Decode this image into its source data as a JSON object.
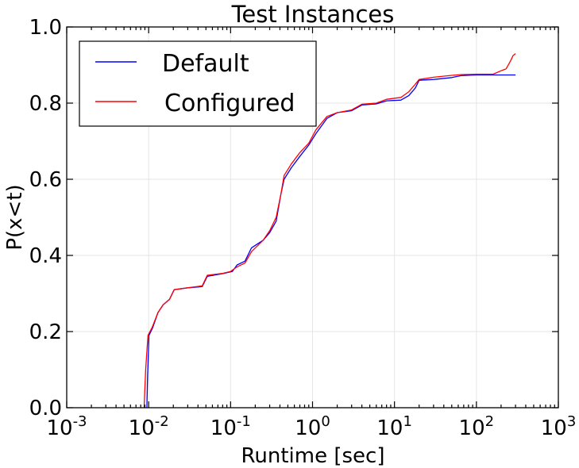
{
  "chart_data": {
    "type": "line",
    "title": "Test Instances",
    "xlabel": "Runtime [sec]",
    "ylabel": "P(x<t)",
    "x_scale": "log",
    "xlim": [
      0.001,
      1000
    ],
    "ylim": [
      0.0,
      1.0
    ],
    "grid": true,
    "legend_position": "top-left",
    "x_ticks": [
      {
        "base": "10",
        "exp": "-3",
        "value": 0.001
      },
      {
        "base": "10",
        "exp": "-2",
        "value": 0.01
      },
      {
        "base": "10",
        "exp": "-1",
        "value": 0.1
      },
      {
        "base": "10",
        "exp": "0",
        "value": 1
      },
      {
        "base": "10",
        "exp": "1",
        "value": 10
      },
      {
        "base": "10",
        "exp": "2",
        "value": 100
      },
      {
        "base": "10",
        "exp": "3",
        "value": 1000
      }
    ],
    "y_ticks": [
      "0.0",
      "0.2",
      "0.4",
      "0.6",
      "0.8",
      "1.0"
    ],
    "series": [
      {
        "name": "Default",
        "color": "#0000ff",
        "points": [
          [
            0.0095,
            0.0
          ],
          [
            0.0097,
            0.08
          ],
          [
            0.0101,
            0.19
          ],
          [
            0.0112,
            0.21
          ],
          [
            0.013,
            0.25
          ],
          [
            0.015,
            0.27
          ],
          [
            0.018,
            0.285
          ],
          [
            0.0205,
            0.31
          ],
          [
            0.03,
            0.315
          ],
          [
            0.045,
            0.318
          ],
          [
            0.052,
            0.345
          ],
          [
            0.08,
            0.352
          ],
          [
            0.105,
            0.358
          ],
          [
            0.12,
            0.375
          ],
          [
            0.15,
            0.385
          ],
          [
            0.18,
            0.42
          ],
          [
            0.25,
            0.44
          ],
          [
            0.3,
            0.46
          ],
          [
            0.36,
            0.49
          ],
          [
            0.41,
            0.56
          ],
          [
            0.45,
            0.6
          ],
          [
            0.55,
            0.63
          ],
          [
            0.7,
            0.66
          ],
          [
            0.9,
            0.69
          ],
          [
            1.1,
            0.72
          ],
          [
            1.5,
            0.76
          ],
          [
            2.0,
            0.775
          ],
          [
            3.0,
            0.78
          ],
          [
            4.0,
            0.795
          ],
          [
            6.0,
            0.798
          ],
          [
            8.0,
            0.806
          ],
          [
            12.0,
            0.808
          ],
          [
            15.0,
            0.82
          ],
          [
            18.0,
            0.84
          ],
          [
            20.0,
            0.86
          ],
          [
            30.0,
            0.862
          ],
          [
            50.0,
            0.867
          ],
          [
            65.0,
            0.872
          ],
          [
            100.0,
            0.874
          ],
          [
            300.0,
            0.874
          ]
        ]
      },
      {
        "name": "Configured",
        "color": "#ff0000",
        "points": [
          [
            0.0088,
            0.0
          ],
          [
            0.0092,
            0.1
          ],
          [
            0.0098,
            0.19
          ],
          [
            0.011,
            0.21
          ],
          [
            0.013,
            0.25
          ],
          [
            0.015,
            0.27
          ],
          [
            0.018,
            0.285
          ],
          [
            0.0205,
            0.31
          ],
          [
            0.03,
            0.315
          ],
          [
            0.045,
            0.32
          ],
          [
            0.052,
            0.348
          ],
          [
            0.08,
            0.353
          ],
          [
            0.1,
            0.358
          ],
          [
            0.12,
            0.37
          ],
          [
            0.15,
            0.38
          ],
          [
            0.18,
            0.41
          ],
          [
            0.25,
            0.44
          ],
          [
            0.3,
            0.465
          ],
          [
            0.36,
            0.5
          ],
          [
            0.41,
            0.56
          ],
          [
            0.45,
            0.61
          ],
          [
            0.55,
            0.64
          ],
          [
            0.7,
            0.67
          ],
          [
            0.9,
            0.695
          ],
          [
            1.1,
            0.73
          ],
          [
            1.5,
            0.765
          ],
          [
            2.0,
            0.775
          ],
          [
            3.0,
            0.782
          ],
          [
            4.0,
            0.797
          ],
          [
            6.0,
            0.8
          ],
          [
            8.0,
            0.81
          ],
          [
            12.0,
            0.815
          ],
          [
            15.0,
            0.83
          ],
          [
            18.0,
            0.85
          ],
          [
            20.0,
            0.862
          ],
          [
            30.0,
            0.868
          ],
          [
            50.0,
            0.873
          ],
          [
            65.0,
            0.875
          ],
          [
            100.0,
            0.876
          ],
          [
            160.0,
            0.876
          ],
          [
            200.0,
            0.885
          ],
          [
            230.0,
            0.89
          ],
          [
            260.0,
            0.91
          ],
          [
            280.0,
            0.925
          ],
          [
            300.0,
            0.93
          ]
        ]
      }
    ]
  }
}
